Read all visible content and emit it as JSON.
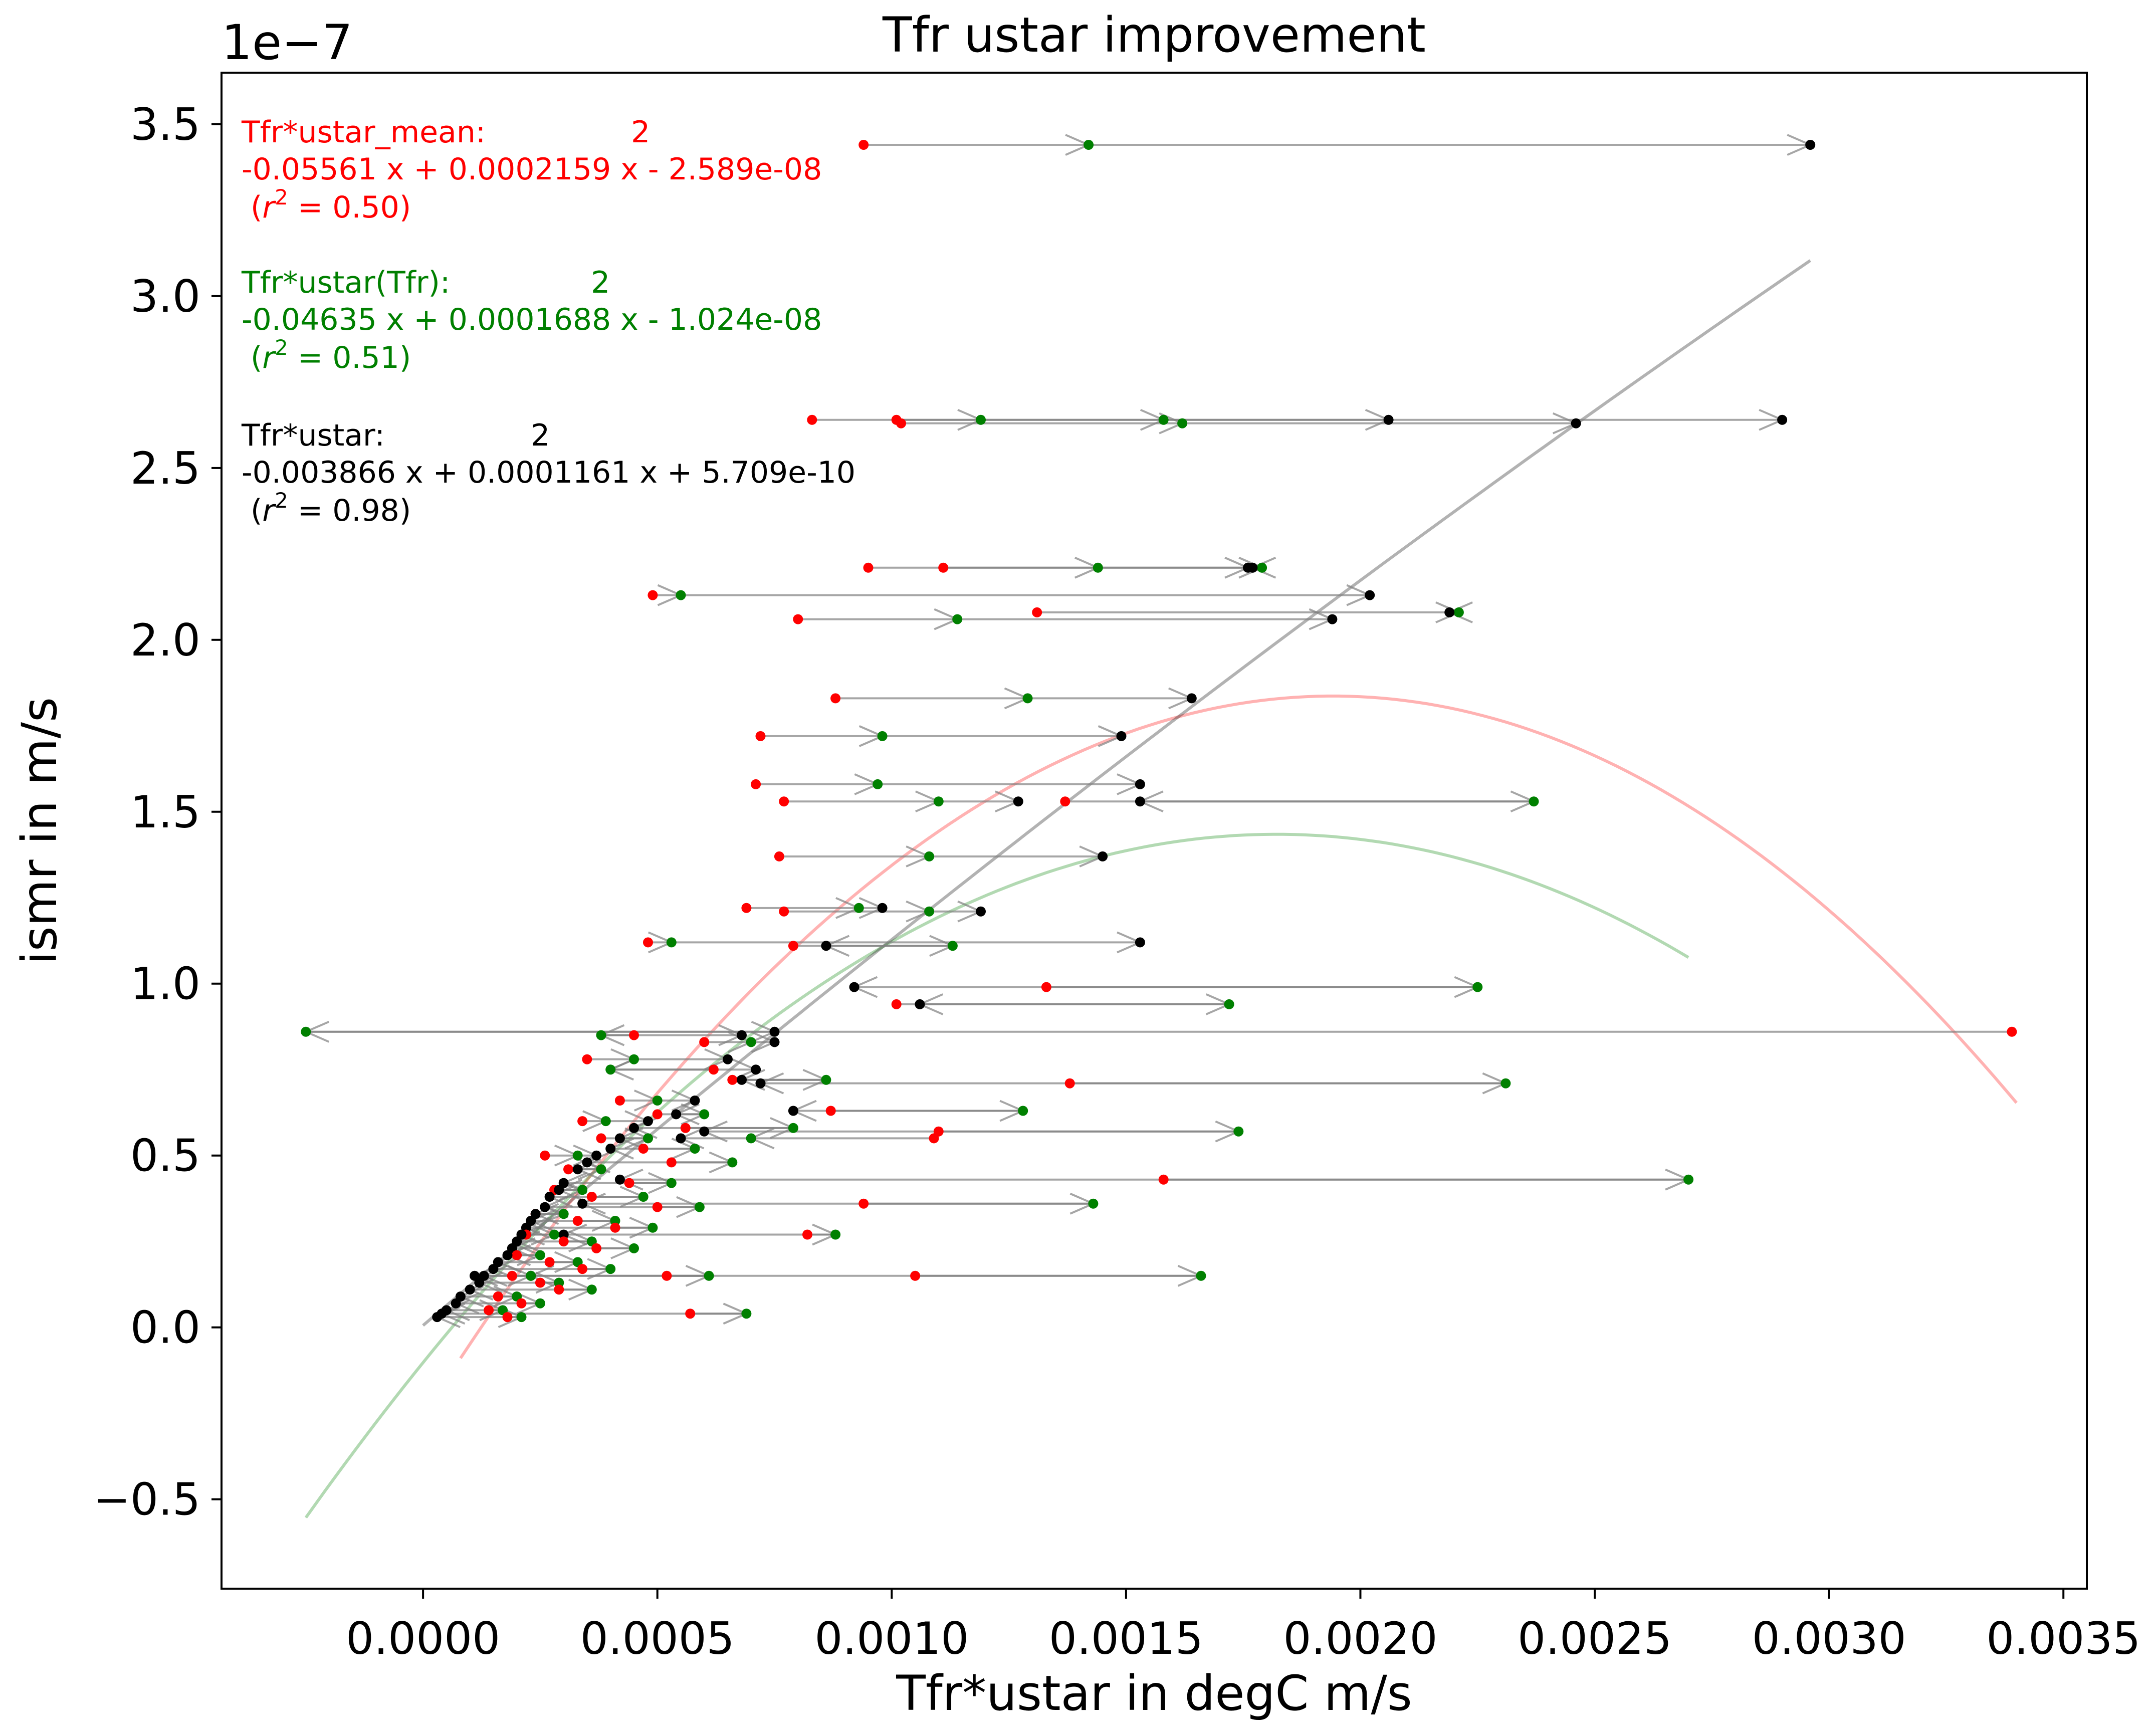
{
  "chart_data": {
    "type": "scatter",
    "title": "Tfr ustar improvement",
    "xlabel": "Tfr*ustar in degC m/s",
    "ylabel": "ismr in m/s",
    "y_offset_label": "1e−7",
    "xlim": [
      -0.00043,
      0.00355
    ],
    "ylim": [
      -0.76,
      3.65
    ],
    "y_unit_scale": 1e-07,
    "grid": false,
    "xticks": [
      0.0,
      0.0005,
      0.001,
      0.0015,
      0.002,
      0.0025,
      0.003,
      0.0035
    ],
    "xtick_labels": [
      "0.0000",
      "0.0005",
      "0.0010",
      "0.0015",
      "0.0020",
      "0.0025",
      "0.0030",
      "0.0035"
    ],
    "yticks": [
      -0.5,
      0.0,
      0.5,
      1.0,
      1.5,
      2.0,
      2.5,
      3.0,
      3.5
    ],
    "ytick_labels": [
      "−0.5",
      "0.0",
      "0.5",
      "1.0",
      "1.5",
      "2.0",
      "2.5",
      "3.0",
      "3.5"
    ],
    "colors": {
      "mean": "#ff0000",
      "tfr": "#008000",
      "ustar": "#000000",
      "arrow": "#808080"
    },
    "annotations": [
      {
        "key": "mean",
        "label": "Tfr*ustar_mean:",
        "exponent": "2",
        "equation": "-0.05561 x + 0.0002159 x - 2.589e-08",
        "r2_prefix": "(",
        "r2_symbol": "r",
        "r2_sup": "2",
        "r2_value": " = 0.50)",
        "color": "#ff0000"
      },
      {
        "key": "tfr",
        "label": "Tfr*ustar(Tfr):",
        "exponent": "2",
        "equation": "-0.04635 x + 0.0001688 x - 1.024e-08",
        "r2_prefix": "(",
        "r2_symbol": "r",
        "r2_sup": "2",
        "r2_value": " = 0.51)",
        "color": "#008000"
      },
      {
        "key": "ustar",
        "label": "Tfr*ustar:",
        "exponent": "2",
        "equation": "-0.003866 x + 0.0001161 x + 5.709e-10",
        "r2_prefix": "(",
        "r2_symbol": "r",
        "r2_sup": "2",
        "r2_value": " = 0.98)",
        "color": "#000000"
      }
    ],
    "fits": [
      {
        "key": "mean",
        "a": -0.05561,
        "b": 0.0002159,
        "c": -2.589e-08,
        "x_range": [
          8e-05,
          0.0034
        ],
        "color": "#ff0000"
      },
      {
        "key": "tfr",
        "a": -0.04635,
        "b": 0.0001688,
        "c": -1.024e-08,
        "x_range": [
          -0.00025,
          0.0027
        ],
        "color": "#008000"
      },
      {
        "key": "ustar",
        "a": -0.003866,
        "b": 0.0001161,
        "c": 5.709e-10,
        "x_range": [
          0.0,
          0.00296
        ],
        "color": "#000000"
      }
    ],
    "points_columns": [
      "ismr_e7",
      "mean",
      "tfr",
      "ustar"
    ],
    "points": [
      [
        3.44,
        0.00094,
        0.00142,
        0.00296
      ],
      [
        2.64,
        0.00083,
        0.00119,
        0.0029
      ],
      [
        2.64,
        0.00101,
        0.00158,
        0.00206
      ],
      [
        2.63,
        0.00102,
        0.00162,
        0.00246
      ],
      [
        2.21,
        0.00095,
        0.00144,
        0.00176
      ],
      [
        2.21,
        0.00111,
        0.00179,
        0.00177
      ],
      [
        2.13,
        0.00049,
        0.00055,
        0.00202
      ],
      [
        2.08,
        0.00131,
        0.00221,
        0.00219
      ],
      [
        2.06,
        0.0008,
        0.00114,
        0.00194
      ],
      [
        1.83,
        0.00088,
        0.00129,
        0.00164
      ],
      [
        1.72,
        0.00072,
        0.00098,
        0.00149
      ],
      [
        1.58,
        0.00071,
        0.00097,
        0.00153
      ],
      [
        1.53,
        0.00077,
        0.0011,
        0.00127
      ],
      [
        1.53,
        0.00137,
        0.00237,
        0.00153
      ],
      [
        1.37,
        0.00076,
        0.00108,
        0.00145
      ],
      [
        1.22,
        0.00069,
        0.00093,
        0.00098
      ],
      [
        1.21,
        0.00077,
        0.00108,
        0.00119
      ],
      [
        1.12,
        0.00048,
        0.00053,
        0.00153
      ],
      [
        1.11,
        0.00079,
        0.00113,
        0.00086
      ],
      [
        0.99,
        0.00133,
        0.00225,
        0.00092
      ],
      [
        0.94,
        0.00101,
        0.00172,
        0.00106
      ],
      [
        0.86,
        0.00339,
        -0.00025,
        0.00075
      ],
      [
        0.71,
        0.00138,
        0.00231,
        0.00072
      ],
      [
        0.63,
        0.00087,
        0.00128,
        0.00079
      ],
      [
        0.57,
        0.0011,
        0.00174,
        0.0006
      ],
      [
        0.55,
        0.00109,
        0.0007,
        0.00055
      ],
      [
        0.43,
        0.00158,
        0.0027,
        0.00042
      ],
      [
        0.36,
        0.00094,
        0.00143,
        0.00034
      ],
      [
        0.27,
        0.00082,
        0.00088,
        0.0003
      ],
      [
        0.15,
        0.00105,
        0.00166,
        0.00023
      ],
      [
        0.15,
        0.00052,
        0.00061,
        0.00011
      ],
      [
        0.04,
        0.00057,
        0.00069,
        4e-05
      ],
      [
        0.85,
        0.00045,
        0.00038,
        0.00068
      ],
      [
        0.83,
        0.0006,
        0.0007,
        0.00075
      ],
      [
        0.78,
        0.00035,
        0.00045,
        0.00065
      ],
      [
        0.75,
        0.00062,
        0.0004,
        0.00071
      ],
      [
        0.72,
        0.00066,
        0.00086,
        0.00068
      ],
      [
        0.66,
        0.00042,
        0.0005,
        0.00058
      ],
      [
        0.62,
        0.0005,
        0.0006,
        0.00054
      ],
      [
        0.6,
        0.00034,
        0.00039,
        0.00048
      ],
      [
        0.58,
        0.00056,
        0.00079,
        0.00045
      ],
      [
        0.55,
        0.00038,
        0.00048,
        0.00042
      ],
      [
        0.52,
        0.00047,
        0.00058,
        0.0004
      ],
      [
        0.5,
        0.00026,
        0.00033,
        0.00037
      ],
      [
        0.48,
        0.00053,
        0.00066,
        0.00035
      ],
      [
        0.46,
        0.00031,
        0.00038,
        0.00033
      ],
      [
        0.42,
        0.00044,
        0.00053,
        0.0003
      ],
      [
        0.4,
        0.00028,
        0.00034,
        0.00029
      ],
      [
        0.38,
        0.00036,
        0.00047,
        0.00027
      ],
      [
        0.35,
        0.0005,
        0.00059,
        0.00026
      ],
      [
        0.33,
        0.00024,
        0.0003,
        0.00024
      ],
      [
        0.31,
        0.00033,
        0.00041,
        0.00023
      ],
      [
        0.29,
        0.00041,
        0.00049,
        0.00022
      ],
      [
        0.27,
        0.00022,
        0.00028,
        0.00021
      ],
      [
        0.25,
        0.0003,
        0.00036,
        0.0002
      ],
      [
        0.23,
        0.00037,
        0.00045,
        0.00019
      ],
      [
        0.21,
        0.0002,
        0.00025,
        0.00018
      ],
      [
        0.19,
        0.00027,
        0.00033,
        0.00016
      ],
      [
        0.17,
        0.00034,
        0.0004,
        0.00015
      ],
      [
        0.15,
        0.00019,
        0.00023,
        0.00013
      ],
      [
        0.13,
        0.00025,
        0.00029,
        0.00012
      ],
      [
        0.11,
        0.00029,
        0.00036,
        0.0001
      ],
      [
        0.09,
        0.00016,
        0.0002,
        8e-05
      ],
      [
        0.07,
        0.00021,
        0.00025,
        7e-05
      ],
      [
        0.05,
        0.00014,
        0.00017,
        5e-05
      ],
      [
        0.03,
        0.00018,
        0.00021,
        3e-05
      ]
    ]
  }
}
